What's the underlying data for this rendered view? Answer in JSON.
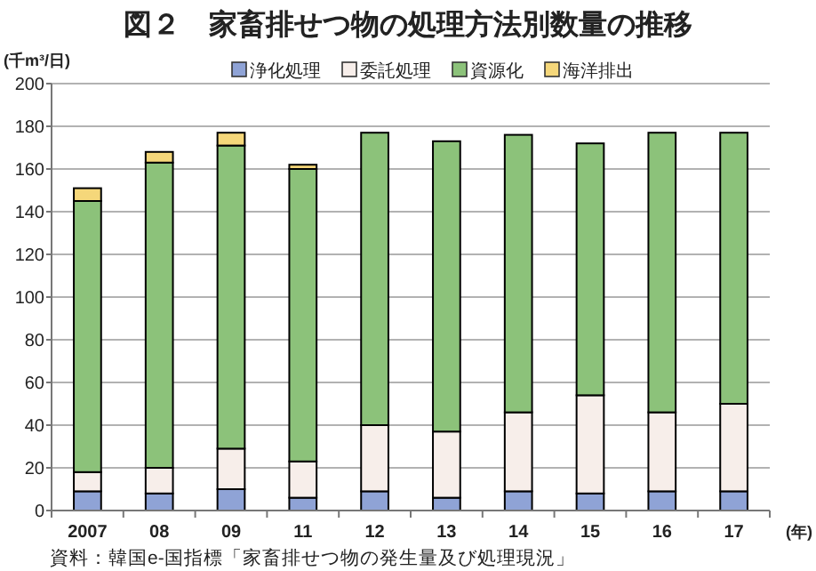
{
  "chart_data": {
    "type": "bar",
    "title": "図２　家畜排せつ物の処理方法別数量の推移",
    "ylabel": "(千m³/日)",
    "xlabel": "(年)",
    "categories": [
      "2007",
      "08",
      "09",
      "11",
      "12",
      "13",
      "14",
      "15",
      "16",
      "17"
    ],
    "series": [
      {
        "name": "浄化処理",
        "color": "#8fa3d6",
        "values": [
          9,
          8,
          10,
          6,
          9,
          6,
          9,
          8,
          9,
          9
        ]
      },
      {
        "name": "委託処理",
        "color": "#f7eeea",
        "values": [
          9,
          12,
          19,
          17,
          31,
          31,
          37,
          46,
          37,
          41
        ]
      },
      {
        "name": "資源化",
        "color": "#8cc27a",
        "values": [
          127,
          143,
          142,
          137,
          137,
          136,
          130,
          118,
          131,
          127
        ]
      },
      {
        "name": "海洋排出",
        "color": "#f5d77a",
        "values": [
          6,
          5,
          6,
          2,
          0,
          0,
          0,
          0,
          0,
          0
        ]
      }
    ],
    "stacked": true,
    "ylim": [
      0,
      200
    ],
    "yticks": [
      0,
      20,
      40,
      60,
      80,
      100,
      120,
      140,
      160,
      180,
      200
    ],
    "grid": "y",
    "legend": "top",
    "annotations": [
      "資料：韓国e-国指標「家畜排せつ物の発生量及び処理現況」"
    ]
  }
}
